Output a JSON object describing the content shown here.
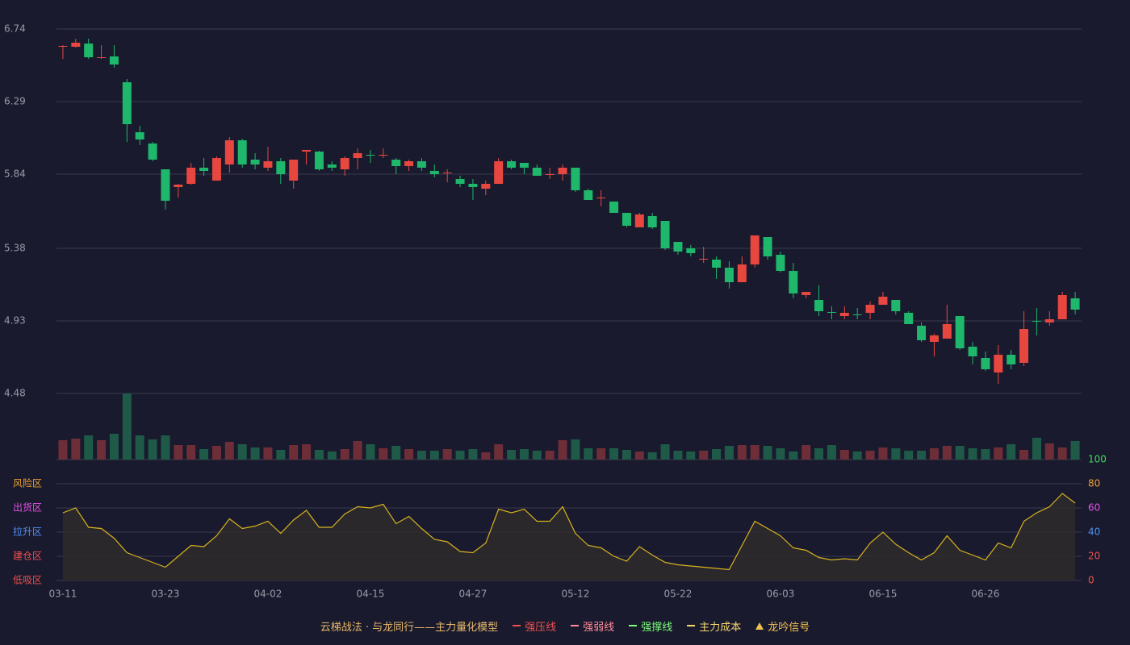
{
  "chart_data": {
    "type": "candlestick",
    "categories": [
      "03-11",
      null,
      null,
      null,
      null,
      null,
      null,
      null,
      "03-23",
      null,
      null,
      null,
      null,
      null,
      null,
      null,
      "04-02",
      null,
      null,
      null,
      null,
      null,
      null,
      null,
      "04-15",
      null,
      null,
      null,
      null,
      null,
      null,
      null,
      "04-27",
      null,
      null,
      null,
      null,
      null,
      null,
      null,
      "05-12",
      null,
      null,
      null,
      null,
      null,
      null,
      null,
      "05-22",
      null,
      null,
      null,
      null,
      null,
      null,
      null,
      "06-03",
      null,
      null,
      null,
      null,
      null,
      null,
      null,
      "06-15",
      null,
      null,
      null,
      null,
      null,
      null,
      null,
      "06-26",
      null,
      null,
      null,
      null,
      null,
      null,
      null
    ],
    "open": [
      6.63,
      6.63,
      6.65,
      6.56,
      6.57,
      6.41,
      6.1,
      6.03,
      5.87,
      5.76,
      5.78,
      5.88,
      5.8,
      5.9,
      6.05,
      5.93,
      5.88,
      5.92,
      5.8,
      5.98,
      5.98,
      5.9,
      5.87,
      5.94,
      5.96,
      5.955,
      5.93,
      5.89,
      5.92,
      5.86,
      5.845,
      5.81,
      5.78,
      5.75,
      5.78,
      5.92,
      5.91,
      5.88,
      5.835,
      5.84,
      5.88,
      5.74,
      5.69,
      5.67,
      5.6,
      5.51,
      5.58,
      5.55,
      5.42,
      5.38,
      5.31,
      5.31,
      5.26,
      5.17,
      5.28,
      5.45,
      5.34,
      5.24,
      5.09,
      5.06,
      4.985,
      4.96,
      4.97,
      4.98,
      5.03,
      5.06,
      4.98,
      4.9,
      4.8,
      4.82,
      4.96,
      4.77,
      4.7,
      4.61,
      4.72,
      4.67,
      4.93,
      4.92,
      4.94,
      5.07
    ],
    "high": [
      6.64,
      6.68,
      6.68,
      6.64,
      6.64,
      6.43,
      6.14,
      6.04,
      5.87,
      5.78,
      5.91,
      5.94,
      5.95,
      6.07,
      6.06,
      5.97,
      6.01,
      5.94,
      5.93,
      5.99,
      5.985,
      5.92,
      5.95,
      6.0,
      5.99,
      6.0,
      5.94,
      5.93,
      5.94,
      5.9,
      5.87,
      5.83,
      5.81,
      5.8,
      5.94,
      5.93,
      5.91,
      5.9,
      5.88,
      5.9,
      5.88,
      5.75,
      5.74,
      5.67,
      5.6,
      5.6,
      5.6,
      5.55,
      5.42,
      5.4,
      5.39,
      5.33,
      5.3,
      5.33,
      5.46,
      5.45,
      5.36,
      5.29,
      5.11,
      5.15,
      5.02,
      5.02,
      5.01,
      5.05,
      5.11,
      5.06,
      4.99,
      4.92,
      4.85,
      5.03,
      4.96,
      4.8,
      4.74,
      4.78,
      4.75,
      4.99,
      5.01,
      4.99,
      5.11,
      5.11
    ],
    "low": [
      6.555,
      6.625,
      6.555,
      6.555,
      6.5,
      6.04,
      6.02,
      5.92,
      5.62,
      5.695,
      5.775,
      5.83,
      5.8,
      5.85,
      5.88,
      5.87,
      5.86,
      5.78,
      5.75,
      5.9,
      5.86,
      5.86,
      5.83,
      5.87,
      5.91,
      5.94,
      5.84,
      5.86,
      5.86,
      5.82,
      5.79,
      5.76,
      5.68,
      5.71,
      5.78,
      5.87,
      5.84,
      5.83,
      5.81,
      5.8,
      5.73,
      5.68,
      5.64,
      5.6,
      5.51,
      5.51,
      5.5,
      5.37,
      5.34,
      5.33,
      5.29,
      5.19,
      5.13,
      5.17,
      5.26,
      5.31,
      5.23,
      5.07,
      5.07,
      4.96,
      4.94,
      4.94,
      4.94,
      4.94,
      5.03,
      4.97,
      4.91,
      4.8,
      4.71,
      4.82,
      4.75,
      4.66,
      4.62,
      4.54,
      4.63,
      4.65,
      4.84,
      4.9,
      4.94,
      4.97
    ],
    "close": [
      6.635,
      6.655,
      6.565,
      6.565,
      6.52,
      6.15,
      6.055,
      5.93,
      5.675,
      5.775,
      5.88,
      5.86,
      5.94,
      6.05,
      5.9,
      5.9,
      5.92,
      5.84,
      5.93,
      5.99,
      5.87,
      5.88,
      5.94,
      5.97,
      5.955,
      5.96,
      5.89,
      5.92,
      5.88,
      5.84,
      5.85,
      5.78,
      5.76,
      5.78,
      5.92,
      5.88,
      5.88,
      5.83,
      5.84,
      5.88,
      5.74,
      5.68,
      5.695,
      5.6,
      5.52,
      5.59,
      5.51,
      5.38,
      5.36,
      5.35,
      5.315,
      5.26,
      5.17,
      5.28,
      5.46,
      5.33,
      5.24,
      5.1,
      5.11,
      4.99,
      4.98,
      4.98,
      4.97,
      5.03,
      5.08,
      4.99,
      4.91,
      4.81,
      4.84,
      4.91,
      4.76,
      4.71,
      4.63,
      4.72,
      4.66,
      4.88,
      4.93,
      4.94,
      5.09,
      5.0
    ],
    "ylim": [
      4.48,
      6.74
    ],
    "yticks": [
      6.74,
      6.29,
      5.84,
      5.38,
      4.93,
      4.48
    ],
    "grid": true,
    "up_color": "#e8473f",
    "down_color": "#1fb76b",
    "volume": {
      "type": "bar",
      "values": [
        24,
        26,
        30,
        24,
        32,
        82,
        30,
        25,
        30,
        18,
        18,
        13,
        17,
        22,
        19,
        15,
        15,
        12,
        18,
        19,
        12,
        10,
        13,
        23,
        19,
        14,
        17,
        13,
        11,
        11,
        13,
        11,
        13,
        9,
        19,
        12,
        13,
        11,
        11,
        24,
        25,
        14,
        14,
        14,
        12,
        10,
        9,
        19,
        11,
        10,
        11,
        13,
        17,
        18,
        18,
        17,
        14,
        10,
        18,
        14,
        18,
        12,
        10,
        11,
        15,
        14,
        11,
        11,
        14,
        17,
        17,
        14,
        13,
        15,
        19,
        12,
        27,
        20,
        15,
        23
      ],
      "up_color": "#6e2e38",
      "down_color": "#1e5a47"
    },
    "indicator": {
      "type": "line",
      "values": [
        56,
        60,
        44,
        43,
        35,
        23,
        19,
        15,
        11,
        20,
        29,
        28,
        37,
        51,
        43,
        45,
        49,
        39,
        50,
        58,
        44,
        44,
        55,
        61,
        60,
        63,
        47,
        53,
        43,
        34,
        32,
        24,
        23,
        31,
        59,
        56,
        59,
        49,
        49,
        61,
        39,
        29,
        27,
        20,
        16,
        28,
        21,
        15,
        13,
        12,
        11,
        10,
        9,
        29,
        49,
        43,
        37,
        27,
        25,
        19,
        17,
        18,
        17,
        31,
        40,
        30,
        23,
        17,
        23,
        37,
        25,
        21,
        17,
        31,
        27,
        49,
        56,
        61,
        72,
        64
      ],
      "color": "#d6b21e",
      "fill": "#2f2b2d",
      "ylim": [
        0,
        100
      ],
      "yticks": [
        0,
        20,
        40,
        60,
        80,
        100
      ],
      "ytick_colors": [
        "#ef4f4f",
        "#ef4f4f",
        "#4f8ff7",
        "#e64fe6",
        "#f0a030",
        "#3ddc5a"
      ],
      "zones": [
        {
          "value": 0,
          "label": "低吸区"
        },
        {
          "value": 20,
          "label": "建仓区"
        },
        {
          "value": 40,
          "label": "拉升区"
        },
        {
          "value": 60,
          "label": "出货区"
        },
        {
          "value": 80,
          "label": "风险区"
        }
      ],
      "zone_colors": [
        "#ef4f4f",
        "#ef4f4f",
        "#4f8ff7",
        "#e64fe6",
        "#f0a030"
      ]
    },
    "legend": {
      "title": "云梯战法 · 与龙同行——主力量化模型",
      "title_color": "#e8b96a",
      "items": [
        {
          "name": "强压线",
          "color": "#ef4f4f",
          "style": "solid"
        },
        {
          "name": "强弱线",
          "color": "#ff8a9a",
          "style": "dashed"
        },
        {
          "name": "强撑线",
          "color": "#7cfc7c",
          "style": "solid"
        },
        {
          "name": "主力成本",
          "color": "#f5d76e",
          "style": "dashed"
        },
        {
          "name": "龙吟信号",
          "color": "#f0c050",
          "style": "triangle"
        }
      ]
    }
  }
}
